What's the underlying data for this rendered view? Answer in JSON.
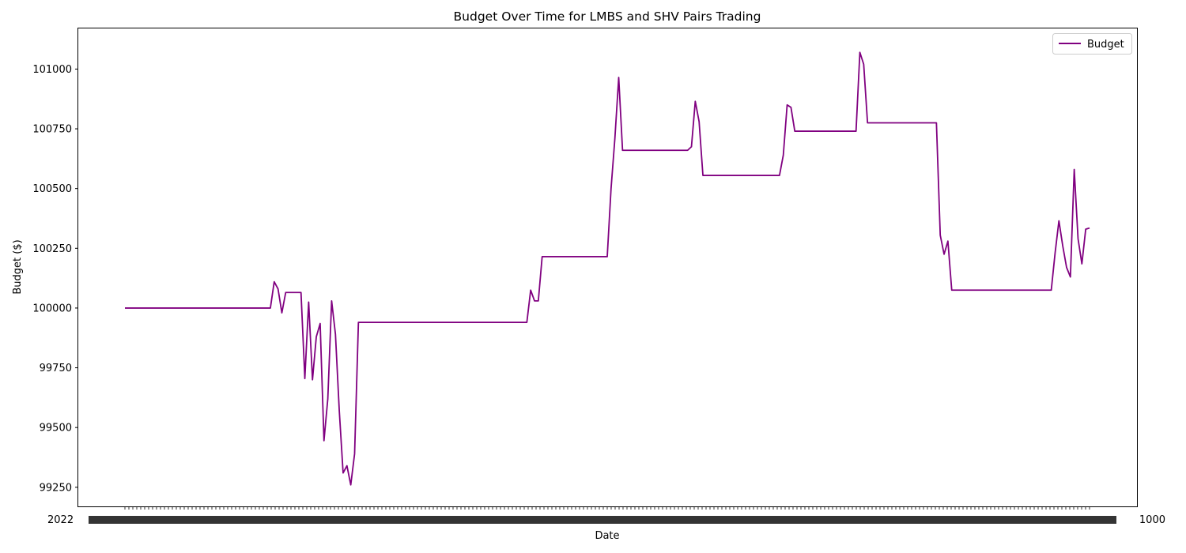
{
  "chart_data": {
    "type": "line",
    "title": "Budget Over Time for LMBS and SHV Pairs Trading",
    "xlabel": "Date",
    "ylabel": "Budget ($)",
    "x_tick_labels_note": "dense, overlapping date tick labels (illegible)",
    "x_tick_count": 245,
    "x_edge_labels": {
      "left": "2022",
      "right": "1000"
    },
    "ylim": [
      99170,
      101170
    ],
    "yticks": [
      99250,
      99500,
      99750,
      100000,
      100250,
      100500,
      100750,
      101000
    ],
    "grid": false,
    "legend": {
      "position": "top-right",
      "entries": [
        "Budget"
      ]
    },
    "series": [
      {
        "name": "Budget",
        "color": "#800080",
        "values": [
          100000,
          100000,
          100000,
          100000,
          100000,
          100000,
          100000,
          100000,
          100000,
          100000,
          100000,
          100000,
          100000,
          100000,
          100000,
          100000,
          100000,
          100000,
          100000,
          100000,
          100000,
          100000,
          100000,
          100000,
          100000,
          100000,
          100000,
          100000,
          100000,
          100000,
          100000,
          100000,
          100000,
          100000,
          100000,
          100000,
          100000,
          100000,
          100000,
          100110,
          100080,
          99980,
          100065,
          100065,
          100065,
          100065,
          100065,
          99705,
          100025,
          99700,
          99880,
          99935,
          99445,
          99620,
          100030,
          99890,
          99570,
          99310,
          99340,
          99260,
          99390,
          99940,
          99940,
          99940,
          99940,
          99940,
          99940,
          99940,
          99940,
          99940,
          99940,
          99940,
          99940,
          99940,
          99940,
          99940,
          99940,
          99940,
          99940,
          99940,
          99940,
          99940,
          99940,
          99940,
          99940,
          99940,
          99940,
          99940,
          99940,
          99940,
          99940,
          99940,
          99940,
          99940,
          99940,
          99940,
          99940,
          99940,
          99940,
          99940,
          99940,
          99940,
          99940,
          99940,
          99940,
          99940,
          100075,
          100030,
          100030,
          100215,
          100215,
          100215,
          100215,
          100215,
          100215,
          100215,
          100215,
          100215,
          100215,
          100215,
          100215,
          100215,
          100215,
          100215,
          100215,
          100215,
          100215,
          100500,
          100710,
          100965,
          100660,
          100660,
          100660,
          100660,
          100660,
          100660,
          100660,
          100660,
          100660,
          100660,
          100660,
          100660,
          100660,
          100660,
          100660,
          100660,
          100660,
          100660,
          100675,
          100865,
          100780,
          100555,
          100555,
          100555,
          100555,
          100555,
          100555,
          100555,
          100555,
          100555,
          100555,
          100555,
          100555,
          100555,
          100555,
          100555,
          100555,
          100555,
          100555,
          100555,
          100555,
          100555,
          100640,
          100850,
          100840,
          100740,
          100740,
          100740,
          100740,
          100740,
          100740,
          100740,
          100740,
          100740,
          100740,
          100740,
          100740,
          100740,
          100740,
          100740,
          100740,
          100740,
          101070,
          101020,
          100775,
          100775,
          100775,
          100775,
          100775,
          100775,
          100775,
          100775,
          100775,
          100775,
          100775,
          100775,
          100775,
          100775,
          100775,
          100775,
          100775,
          100775,
          100775,
          100305,
          100225,
          100280,
          100075,
          100075,
          100075,
          100075,
          100075,
          100075,
          100075,
          100075,
          100075,
          100075,
          100075,
          100075,
          100075,
          100075,
          100075,
          100075,
          100075,
          100075,
          100075,
          100075,
          100075,
          100075,
          100075,
          100075,
          100075,
          100075,
          100075,
          100230,
          100365,
          100260,
          100170,
          100130,
          100580,
          100290,
          100185,
          100330,
          100335
        ]
      }
    ]
  }
}
